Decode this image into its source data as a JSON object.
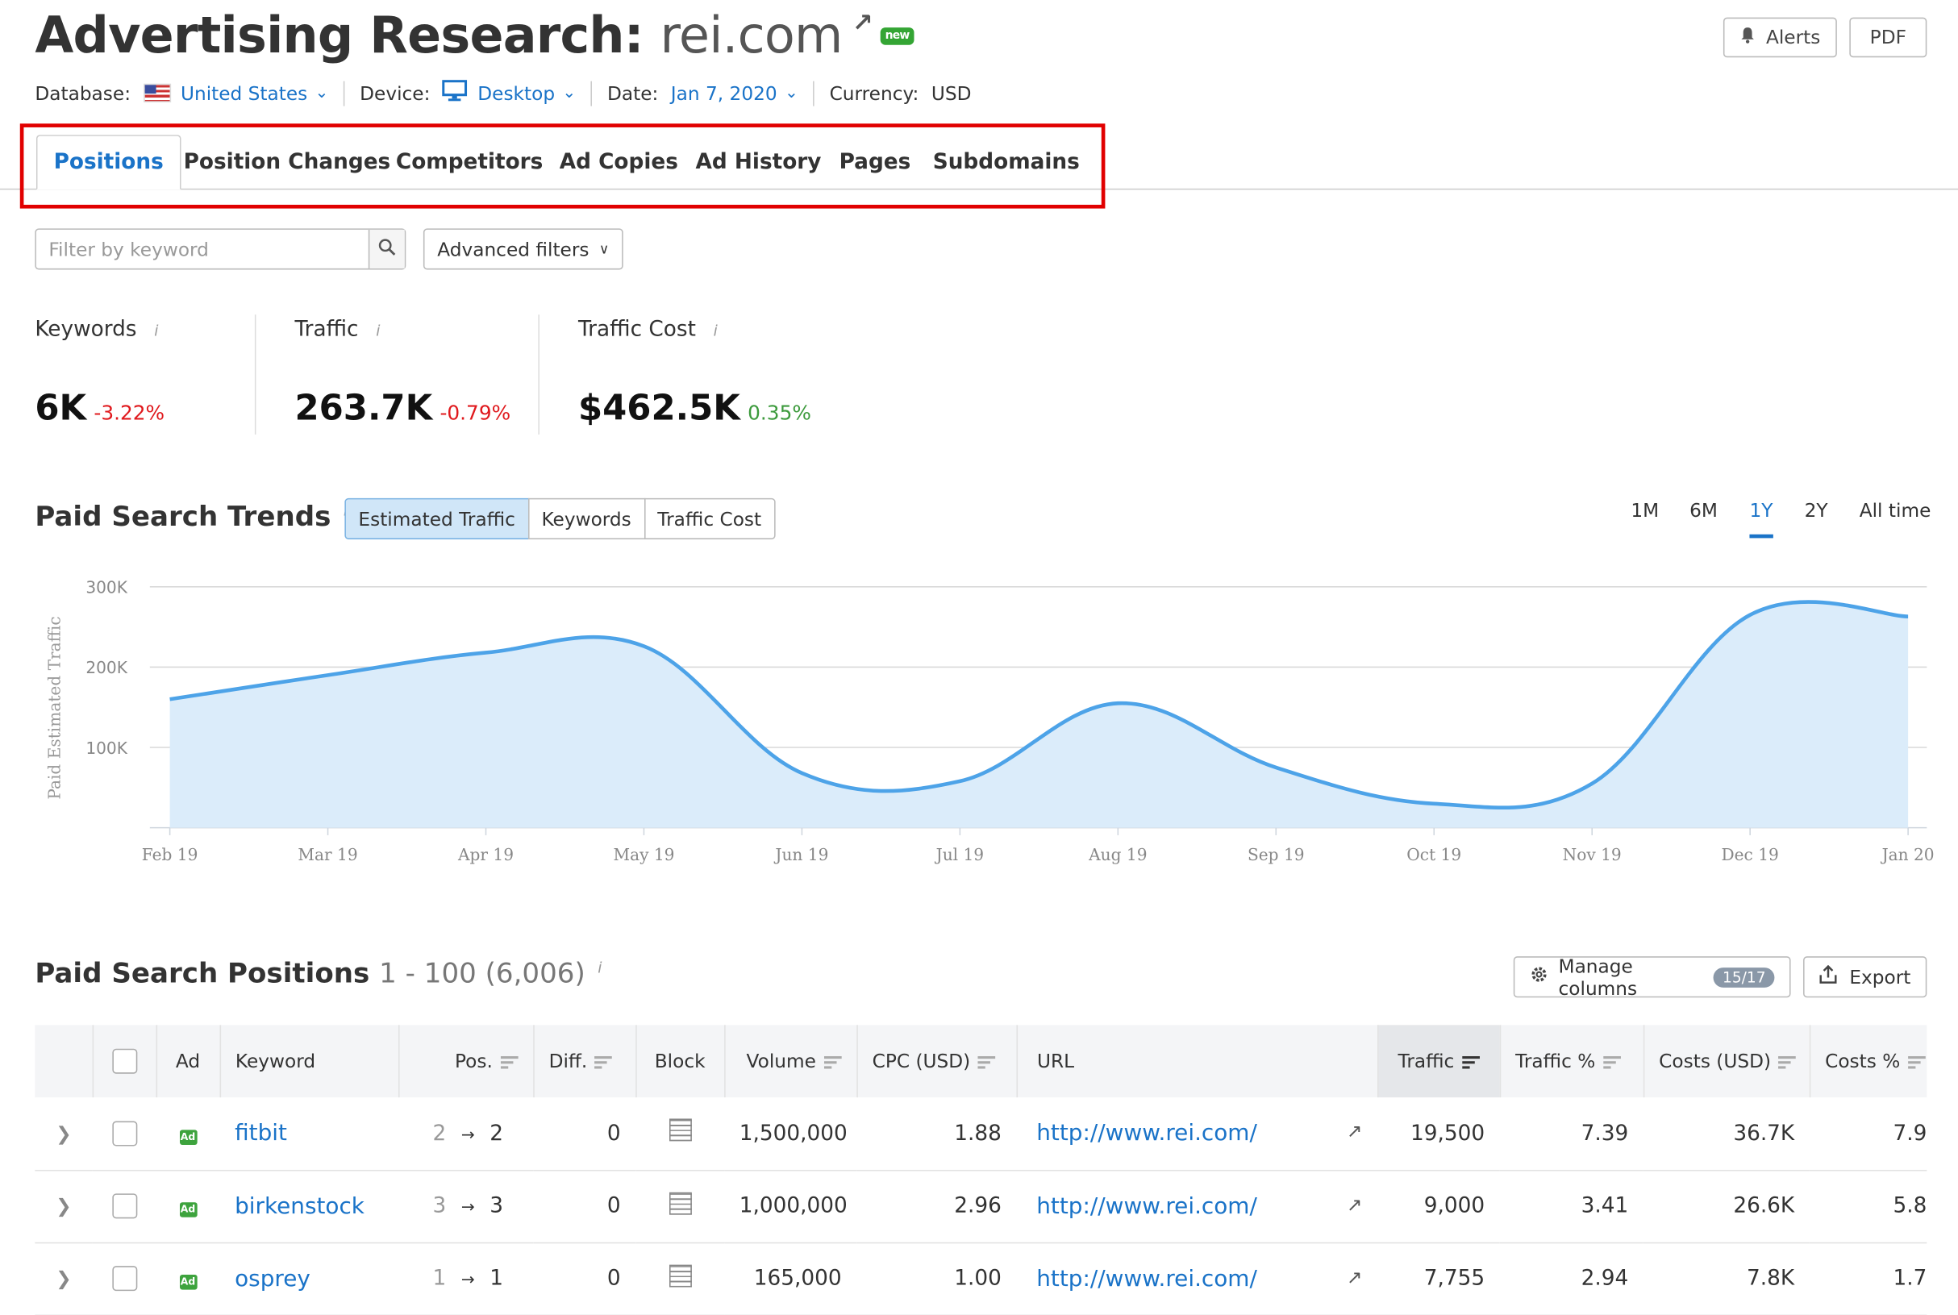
{
  "header": {
    "title_prefix": "Advertising Research: ",
    "domain": "rei.com",
    "new_badge": "new",
    "alerts_label": "Alerts",
    "pdf_label": "PDF"
  },
  "meta": {
    "database_label": "Database:",
    "database_value": "United States",
    "device_label": "Device:",
    "device_value": "Desktop",
    "date_label": "Date:",
    "date_value": "Jan 7, 2020",
    "currency_label": "Currency:",
    "currency_value": "USD"
  },
  "tabs": [
    "Positions",
    "Position Changes",
    "Competitors",
    "Ad Copies",
    "Ad History",
    "Pages",
    "Subdomains"
  ],
  "filters": {
    "keyword_placeholder": "Filter by keyword",
    "advanced_label": "Advanced filters"
  },
  "kpis": [
    {
      "label": "Keywords",
      "value": "6K",
      "delta": "-3.22%"
    },
    {
      "label": "Traffic",
      "value": "263.7K",
      "delta": "-0.79%"
    },
    {
      "label": "Traffic Cost",
      "value": "$462.5K",
      "delta": "0.35%"
    }
  ],
  "trends": {
    "title": "Paid Search Trends",
    "segments": [
      "Estimated Traffic",
      "Keywords",
      "Traffic Cost"
    ],
    "periods": [
      "1M",
      "6M",
      "1Y",
      "2Y",
      "All time"
    ],
    "active_period": "1Y"
  },
  "chart_data": {
    "type": "area",
    "ylabel": "Paid Estimated Traffic",
    "ylim": [
      0,
      300000
    ],
    "yticks": [
      "300K",
      "200K",
      "100K"
    ],
    "ytick_values": [
      300000,
      200000,
      100000
    ],
    "grid": true,
    "color": "#4da3e8",
    "fill": "#dbecfa",
    "xlabels": [
      "Feb 19",
      "Mar 19",
      "Apr 19",
      "May 19",
      "Jun 19",
      "Jul 19",
      "Aug 19",
      "Sep 19",
      "Oct 19",
      "Nov 19",
      "Dec 19",
      "Jan 20"
    ],
    "series": [
      {
        "values": [
          160000,
          190000,
          218000,
          226000,
          68000,
          58000,
          155000,
          75000,
          30000,
          55000,
          265000,
          263000
        ]
      }
    ]
  },
  "positions": {
    "title": "Paid Search Positions",
    "range": "1 - 100 (6,006)",
    "manage_label": "Manage columns",
    "manage_badge": "15/17",
    "export_label": "Export",
    "columns": [
      "Ad",
      "Keyword",
      "Pos.",
      "Diff.",
      "Block",
      "Volume",
      "CPC (USD)",
      "URL",
      "Traffic",
      "Traffic %",
      "Costs (USD)",
      "Costs %"
    ],
    "rows": [
      {
        "keyword": "fitbit",
        "pos_prev": "2",
        "pos": "2",
        "diff": "0",
        "volume": "1,500,000",
        "cpc": "1.88",
        "url": "http://www.rei.com/",
        "traffic": "19,500",
        "traffic_pct": "7.39",
        "costs": "36.7K",
        "costs_pct": "7.9"
      },
      {
        "keyword": "birkenstock",
        "pos_prev": "3",
        "pos": "3",
        "diff": "0",
        "volume": "1,000,000",
        "cpc": "2.96",
        "url": "http://www.rei.com/",
        "traffic": "9,000",
        "traffic_pct": "3.41",
        "costs": "26.6K",
        "costs_pct": "5.8"
      },
      {
        "keyword": "osprey",
        "pos_prev": "1",
        "pos": "1",
        "diff": "0",
        "volume": "165,000",
        "cpc": "1.00",
        "url": "http://www.rei.com/",
        "traffic": "7,755",
        "traffic_pct": "2.94",
        "costs": "7.8K",
        "costs_pct": "1.7"
      }
    ]
  }
}
